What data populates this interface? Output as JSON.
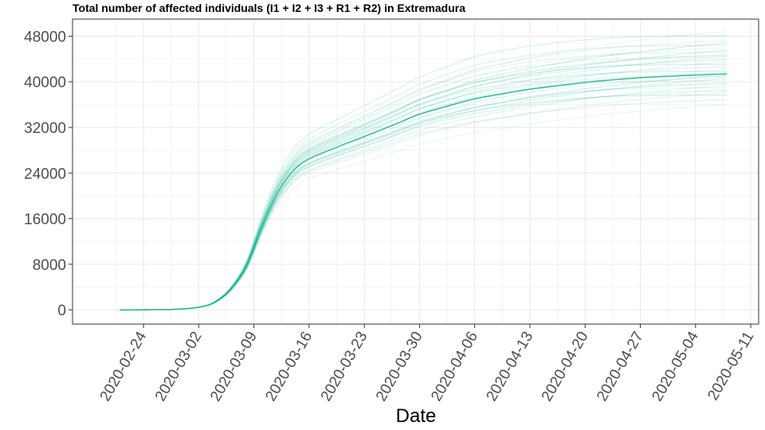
{
  "chart_data": {
    "type": "line",
    "title": "Total number of affected individuals (I1 + I2 + I3 + R1 + R2) in  Extremadura",
    "xlabel": "Date",
    "ylabel": "",
    "xlim": [
      "2020-02-15",
      "2020-05-12"
    ],
    "ylim": [
      -2500,
      51000
    ],
    "x_ticks": [
      "2020-02-24",
      "2020-03-02",
      "2020-03-09",
      "2020-03-16",
      "2020-03-23",
      "2020-03-30",
      "2020-04-06",
      "2020-04-13",
      "2020-04-20",
      "2020-04-27",
      "2020-05-04",
      "2020-05-11"
    ],
    "y_ticks": [
      0,
      8000,
      16000,
      24000,
      32000,
      40000,
      48000
    ],
    "grid": true,
    "legend": "none",
    "colors": {
      "line": "#1fb594",
      "frame": "#333333",
      "grid": "#ebebeb"
    },
    "x": [
      "2020-02-21",
      "2020-02-24",
      "2020-02-28",
      "2020-03-02",
      "2020-03-04",
      "2020-03-06",
      "2020-03-08",
      "2020-03-10",
      "2020-03-12",
      "2020-03-14",
      "2020-03-16",
      "2020-03-20",
      "2020-03-23",
      "2020-03-27",
      "2020-03-30",
      "2020-04-03",
      "2020-04-06",
      "2020-04-10",
      "2020-04-13",
      "2020-04-17",
      "2020-04-20",
      "2020-04-24",
      "2020-04-27",
      "2020-05-01",
      "2020-05-04",
      "2020-05-08"
    ],
    "series": [
      {
        "values": [
          0,
          10,
          90,
          450,
          1300,
          3500,
          7500,
          14500,
          20500,
          24400,
          26500,
          28800,
          30400,
          32600,
          34300,
          35900,
          37000,
          38000,
          38700,
          39400,
          39900,
          40400,
          40700,
          41000,
          41200,
          41400
        ]
      }
    ],
    "ensemble_scale_factors": [
      0.87,
      0.89,
      0.91,
      0.92,
      0.93,
      0.94,
      0.95,
      0.96,
      0.97,
      0.98,
      0.985,
      0.99,
      0.995,
      1.005,
      1.01,
      1.02,
      1.03,
      1.04,
      1.05,
      1.06,
      1.07,
      1.075,
      1.08,
      1.09,
      1.1,
      1.11,
      1.12,
      1.13,
      1.14,
      1.16,
      1.18
    ]
  }
}
